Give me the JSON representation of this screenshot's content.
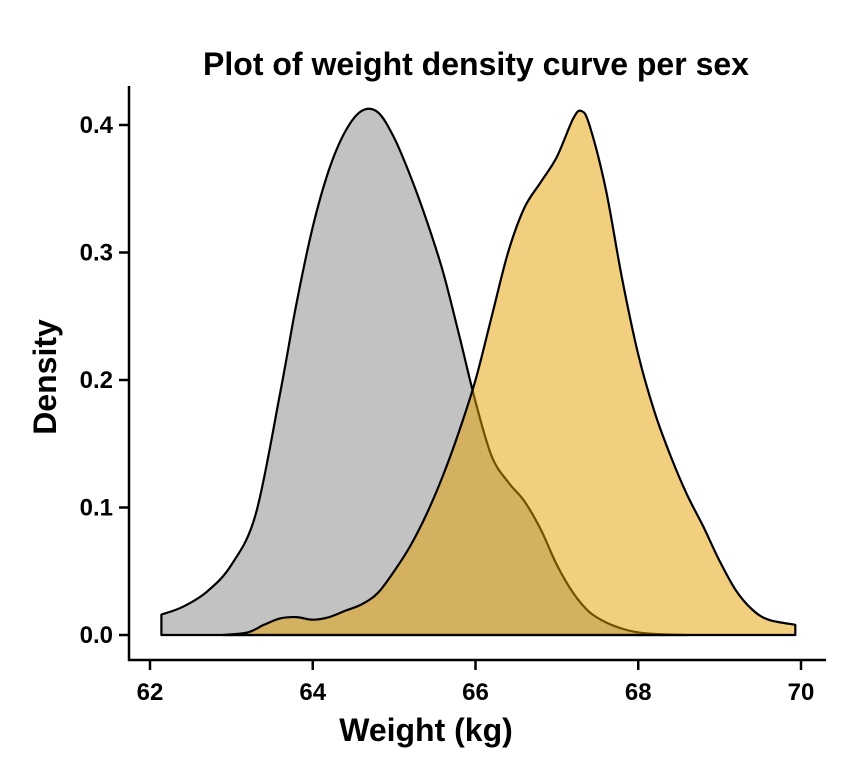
{
  "chart_data": {
    "type": "area",
    "title": "Plot of weight density curve per sex",
    "xlabel": "Weight (kg)",
    "ylabel": "Density",
    "xlim": [
      62,
      70
    ],
    "ylim": [
      0,
      0.4
    ],
    "x_ticks": [
      "62",
      "64",
      "66",
      "68",
      "70"
    ],
    "y_ticks": [
      "0.0",
      "0.1",
      "0.2",
      "0.3",
      "0.4"
    ],
    "grid": false,
    "legend": "none",
    "series": [
      {
        "color": "#999999",
        "fill_opacity": 0.6,
        "points": [
          [
            62.14,
            0.016
          ],
          [
            62.4,
            0.022
          ],
          [
            62.7,
            0.034
          ],
          [
            63.0,
            0.055
          ],
          [
            63.3,
            0.095
          ],
          [
            63.6,
            0.19
          ],
          [
            63.8,
            0.26
          ],
          [
            64.0,
            0.32
          ],
          [
            64.2,
            0.365
          ],
          [
            64.4,
            0.395
          ],
          [
            64.6,
            0.411
          ],
          [
            64.8,
            0.41
          ],
          [
            65.0,
            0.39
          ],
          [
            65.2,
            0.36
          ],
          [
            65.4,
            0.325
          ],
          [
            65.6,
            0.285
          ],
          [
            65.8,
            0.235
          ],
          [
            66.0,
            0.183
          ],
          [
            66.2,
            0.14
          ],
          [
            66.4,
            0.12
          ],
          [
            66.6,
            0.105
          ],
          [
            66.8,
            0.083
          ],
          [
            67.0,
            0.055
          ],
          [
            67.2,
            0.033
          ],
          [
            67.4,
            0.018
          ],
          [
            67.6,
            0.01
          ],
          [
            67.8,
            0.005
          ],
          [
            68.0,
            0.002
          ],
          [
            68.3,
            0.0005
          ],
          [
            68.6,
            0.0
          ]
        ]
      },
      {
        "color": "#E69F00",
        "fill_opacity": 0.5,
        "points": [
          [
            62.9,
            0.0
          ],
          [
            63.2,
            0.002
          ],
          [
            63.4,
            0.008
          ],
          [
            63.6,
            0.013
          ],
          [
            63.8,
            0.014
          ],
          [
            64.0,
            0.012
          ],
          [
            64.2,
            0.014
          ],
          [
            64.4,
            0.019
          ],
          [
            64.6,
            0.024
          ],
          [
            64.8,
            0.033
          ],
          [
            65.0,
            0.05
          ],
          [
            65.2,
            0.07
          ],
          [
            65.4,
            0.095
          ],
          [
            65.6,
            0.125
          ],
          [
            65.8,
            0.16
          ],
          [
            66.0,
            0.2
          ],
          [
            66.2,
            0.25
          ],
          [
            66.4,
            0.3
          ],
          [
            66.6,
            0.335
          ],
          [
            66.8,
            0.355
          ],
          [
            67.0,
            0.375
          ],
          [
            67.2,
            0.405
          ],
          [
            67.3,
            0.411
          ],
          [
            67.4,
            0.4
          ],
          [
            67.6,
            0.35
          ],
          [
            67.8,
            0.28
          ],
          [
            68.0,
            0.22
          ],
          [
            68.2,
            0.175
          ],
          [
            68.4,
            0.14
          ],
          [
            68.6,
            0.11
          ],
          [
            68.8,
            0.085
          ],
          [
            69.0,
            0.058
          ],
          [
            69.2,
            0.035
          ],
          [
            69.4,
            0.02
          ],
          [
            69.6,
            0.012
          ],
          [
            69.93,
            0.008
          ]
        ]
      }
    ]
  }
}
